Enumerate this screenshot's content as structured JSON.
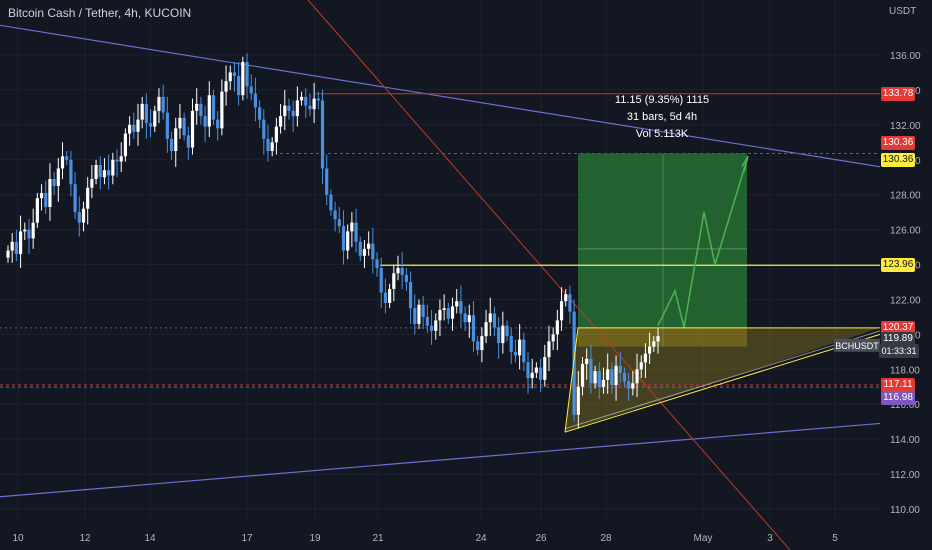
{
  "header": {
    "title": "Bitcoin Cash / Tether, 4h, KUCOIN"
  },
  "measure": {
    "line1": "11.15 (9.35%) 1115",
    "line2": "31 bars, 5d 4h",
    "line3": "Vol 5.113K"
  },
  "axis": {
    "unit": "USDT",
    "x_labels": [
      "10",
      "12",
      "14",
      "17",
      "19",
      "21",
      "24",
      "26",
      "28",
      "May",
      "3",
      "5"
    ],
    "y_labels": [
      "136.00",
      "134.00",
      "132.00",
      "130.00",
      "128.00",
      "126.00",
      "124.00",
      "122.00",
      "120.00",
      "118.00",
      "116.00",
      "114.00",
      "112.00",
      "110.00"
    ]
  },
  "badges": [
    {
      "key": "b1",
      "text": "133.78",
      "bg": "#e53935",
      "fg": "#ffffff"
    },
    {
      "key": "b2",
      "text": "130.36",
      "bg": "#e53935",
      "fg": "#ffffff"
    },
    {
      "key": "b3",
      "text": "130.36",
      "bg": "#ffeb3b",
      "fg": "#131722"
    },
    {
      "key": "b4",
      "text": "123.96",
      "bg": "#ffeb3b",
      "fg": "#131722"
    },
    {
      "key": "b5",
      "text": "120.37",
      "bg": "#e53935",
      "fg": "#ffffff"
    },
    {
      "key": "b6",
      "text": "119.89",
      "bg": "#363a45",
      "fg": "#ffffff"
    },
    {
      "key": "b7",
      "text": "01:33:31",
      "bg": "#363a45",
      "fg": "#ffffff"
    },
    {
      "key": "b8",
      "text": "117.11",
      "bg": "#e53935",
      "fg": "#ffffff"
    },
    {
      "key": "b9",
      "text": "116.98",
      "bg": "#7e57c2",
      "fg": "#ffffff"
    }
  ],
  "symbol_tag": "BCHUSDT",
  "colors": {
    "up": "#ffffff",
    "down": "#4a90e2",
    "bg": "#131722",
    "grid": "#1e222d",
    "trend": "#6b6fd1",
    "red": "#c0392b",
    "yellow": "#ffeb3b",
    "green": "#2e7d32",
    "path": "#4caf50"
  },
  "chart_data": {
    "type": "candlestick",
    "symbol": "BCHUSDT",
    "timeframe": "4h",
    "ylim": [
      109.0,
      138.0
    ],
    "close_series": [
      124.8,
      125.3,
      124.6,
      125.9,
      126.0,
      125.5,
      126.4,
      127.8,
      128.1,
      127.3,
      128.9,
      128.5,
      129.5,
      130.2,
      130.0,
      128.6,
      127.0,
      126.4,
      127.2,
      128.4,
      128.9,
      129.7,
      129.0,
      129.4,
      129.1,
      130.0,
      129.9,
      130.2,
      131.5,
      132.0,
      131.6,
      132.3,
      133.2,
      132.1,
      131.9,
      132.8,
      133.6,
      132.7,
      131.2,
      130.5,
      131.8,
      132.4,
      131.4,
      130.7,
      132.8,
      133.2,
      132.5,
      131.9,
      133.7,
      132.3,
      131.8,
      133.9,
      134.5,
      135.0,
      134.8,
      133.7,
      135.6,
      134.2,
      133.8,
      133.0,
      132.3,
      131.2,
      130.5,
      131.0,
      131.9,
      132.5,
      133.1,
      132.8,
      132.5,
      133.4,
      133.6,
      133.1,
      132.9,
      133.5,
      133.4,
      129.5,
      128.0,
      127.1,
      126.6,
      126.2,
      124.8,
      125.9,
      126.4,
      125.3,
      124.5,
      124.9,
      125.2,
      124.3,
      123.8,
      122.4,
      121.8,
      122.6,
      123.5,
      123.8,
      123.4,
      123.0,
      121.5,
      120.6,
      121.7,
      121.0,
      120.5,
      120.2,
      120.8,
      121.4,
      121.5,
      120.9,
      121.6,
      121.9,
      121.2,
      120.7,
      121.1,
      119.6,
      119.1,
      119.9,
      120.7,
      121.2,
      120.4,
      119.5,
      120.5,
      119.9,
      119.0,
      118.8,
      119.7,
      118.4,
      117.5,
      117.8,
      118.1,
      117.4,
      118.7,
      119.6,
      120.0,
      120.8,
      121.9,
      122.3,
      121.3,
      115.4,
      117.0,
      118.3,
      118.6,
      117.2,
      117.9,
      117.0,
      117.4,
      118.0,
      117.1,
      118.2,
      117.8,
      117.3,
      116.9,
      117.2,
      118.0,
      118.4,
      118.9,
      119.3,
      119.6,
      119.9
    ],
    "horizontal_levels": [
      133.78,
      130.36,
      123.96,
      120.37,
      117.11,
      116.98
    ],
    "last_price": 119.89,
    "long_position": {
      "entry": 120.37,
      "target": 130.36,
      "stop": 119.3
    },
    "measurement": {
      "change": 11.15,
      "change_pct": 9.35,
      "bars": 31,
      "duration": "5d 4h",
      "volume": "5.113K"
    }
  }
}
